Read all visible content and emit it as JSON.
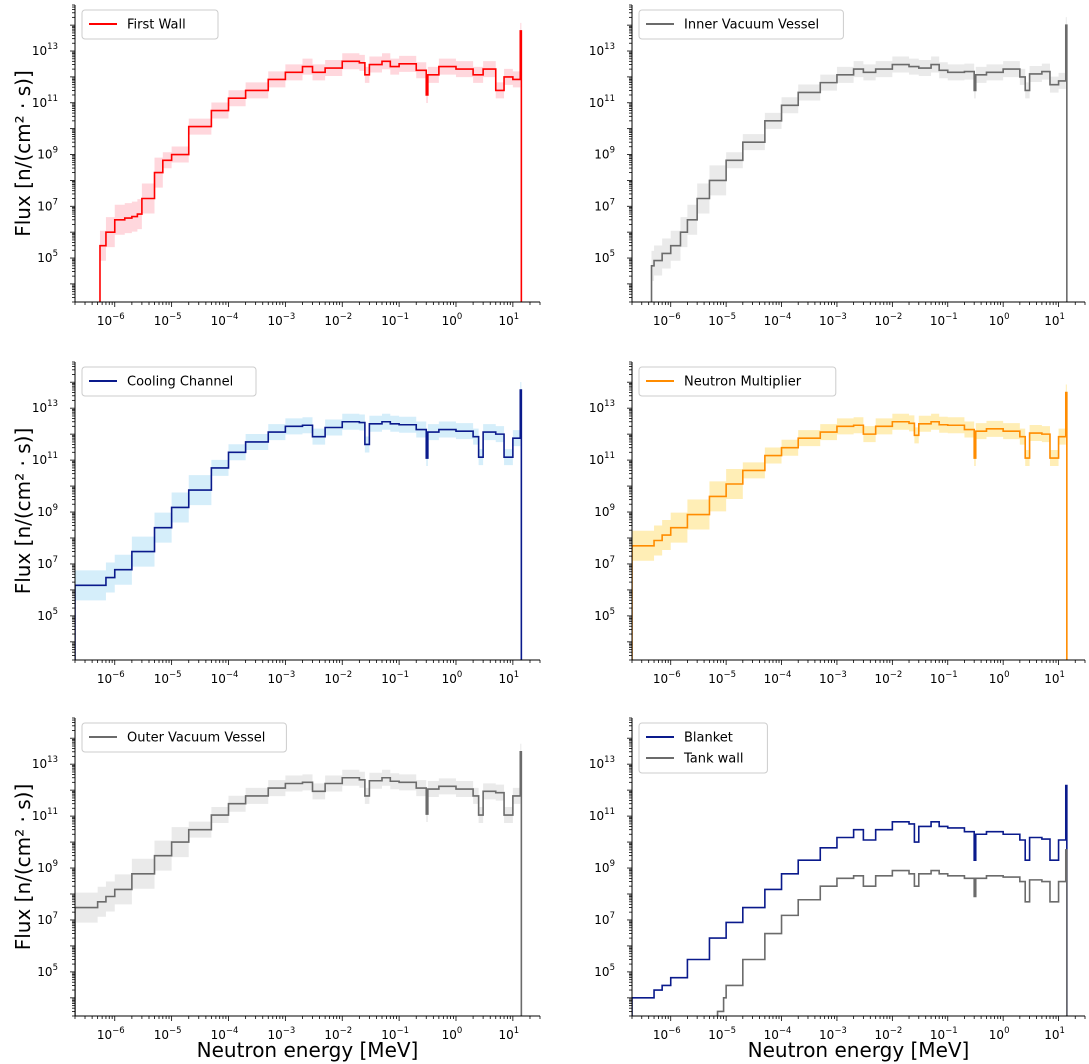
{
  "chart_data": [
    {
      "type": "line",
      "panel": "top-left",
      "ylabel": "Flux [n/(cm² · s)]",
      "xlabel": "",
      "xscale": "log",
      "yscale": "log",
      "xlim": [
        2e-07,
        30
      ],
      "ylim": [
        2000.0,
        600000000000000.0
      ],
      "legend": "top-left",
      "series": [
        {
          "name": "First Wall",
          "color": "#ff0000",
          "band_color": "#ffb6c1",
          "x": [
            5.5e-07,
            7e-07,
            1e-06,
            1.5e-06,
            2e-06,
            2.5e-06,
            3e-06,
            5e-06,
            7e-06,
            1e-05,
            2e-05,
            5e-05,
            0.0001,
            0.0002,
            0.0005,
            0.001,
            0.002,
            0.003,
            0.005,
            0.01,
            0.02,
            0.025,
            0.03,
            0.05,
            0.07,
            0.1,
            0.2,
            0.3,
            0.32,
            0.5,
            1,
            2,
            3,
            5,
            7,
            10,
            13.5,
            14.1
          ],
          "y": [
            300000.0,
            1000000.0,
            3000000.0,
            3500000.0,
            4000000.0,
            5000000.0,
            20000000.0,
            200000000.0,
            600000000.0,
            1000000000.0,
            12000000000.0,
            50000000000.0,
            150000000000.0,
            300000000000.0,
            800000000000.0,
            1500000000000.0,
            2500000000000.0,
            1500000000000.0,
            2200000000000.0,
            4000000000000.0,
            3500000000000.0,
            1200000000000.0,
            3000000000000.0,
            4000000000000.0,
            2500000000000.0,
            3200000000000.0,
            1800000000000.0,
            200000000000.0,
            1200000000000.0,
            2500000000000.0,
            2000000000000.0,
            1200000000000.0,
            2000000000000.0,
            300000000000.0,
            1000000000000.0,
            800000000000.0,
            60000000000000.0,
            0
          ]
        }
      ]
    },
    {
      "type": "line",
      "panel": "top-right",
      "ylabel": "",
      "xlabel": "",
      "xscale": "log",
      "yscale": "log",
      "xlim": [
        2e-07,
        30
      ],
      "ylim": [
        2000.0,
        600000000000000.0
      ],
      "legend": "top-left",
      "series": [
        {
          "name": "Inner Vacuum Vessel",
          "color": "#6b6b6b",
          "band_color": "#d8d8d8",
          "x": [
            4.5e-07,
            5e-07,
            7e-07,
            1e-06,
            1.5e-06,
            2e-06,
            3e-06,
            5e-06,
            1e-05,
            2e-05,
            5e-05,
            0.0001,
            0.0002,
            0.0005,
            0.001,
            0.002,
            0.003,
            0.005,
            0.01,
            0.02,
            0.03,
            0.05,
            0.07,
            0.1,
            0.2,
            0.3,
            0.32,
            0.5,
            1,
            2,
            2.5,
            3,
            5,
            7,
            10,
            13.5,
            14.1
          ],
          "y": [
            50000.0,
            80000.0,
            150000.0,
            300000.0,
            1000000.0,
            3000000.0,
            20000000.0,
            100000000.0,
            600000000.0,
            3000000000.0,
            20000000000.0,
            80000000000.0,
            250000000000.0,
            600000000000.0,
            1200000000000.0,
            2000000000000.0,
            1500000000000.0,
            2000000000000.0,
            3000000000000.0,
            2500000000000.0,
            2200000000000.0,
            3000000000000.0,
            1800000000000.0,
            1500000000000.0,
            1600000000000.0,
            300000000000.0,
            1200000000000.0,
            1500000000000.0,
            2000000000000.0,
            1000000000000.0,
            300000000000.0,
            1300000000000.0,
            1600000000000.0,
            500000000000.0,
            700000000000.0,
            100000000000000.0,
            0
          ]
        }
      ]
    },
    {
      "type": "line",
      "panel": "middle-left",
      "ylabel": "Flux [n/(cm² · s)]",
      "xlabel": "",
      "xscale": "log",
      "yscale": "log",
      "xlim": [
        2e-07,
        30
      ],
      "ylim": [
        2000.0,
        600000000000000.0
      ],
      "legend": "top-left",
      "series": [
        {
          "name": "Cooling Channel",
          "color": "#0a1a8c",
          "band_color": "#b3e0f5",
          "x": [
            2e-07,
            5e-07,
            7e-07,
            1e-06,
            2e-06,
            5e-06,
            1e-05,
            2e-05,
            5e-05,
            0.0001,
            0.0002,
            0.0005,
            0.001,
            0.002,
            0.003,
            0.005,
            0.01,
            0.02,
            0.025,
            0.03,
            0.05,
            0.07,
            0.1,
            0.2,
            0.3,
            0.32,
            0.5,
            1,
            2,
            2.5,
            3,
            5,
            7,
            10,
            13.5,
            14.1
          ],
          "y": [
            1500000.0,
            1500000.0,
            3000000.0,
            6000000.0,
            30000000.0,
            250000000.0,
            1500000000.0,
            7000000000.0,
            50000000000.0,
            200000000000.0,
            500000000000.0,
            1200000000000.0,
            2000000000000.0,
            2200000000000.0,
            800000000000.0,
            1800000000000.0,
            3000000000000.0,
            2800000000000.0,
            400000000000.0,
            2500000000000.0,
            3000000000000.0,
            2500000000000.0,
            2300000000000.0,
            1500000000000.0,
            120000000000.0,
            1200000000000.0,
            1500000000000.0,
            1300000000000.0,
            800000000000.0,
            130000000000.0,
            1200000000000.0,
            1000000000000.0,
            130000000000.0,
            700000000000.0,
            50000000000000.0,
            0
          ]
        }
      ]
    },
    {
      "type": "line",
      "panel": "middle-right",
      "ylabel": "",
      "xlabel": "",
      "xscale": "log",
      "yscale": "log",
      "xlim": [
        2e-07,
        30
      ],
      "ylim": [
        2000.0,
        600000000000000.0
      ],
      "legend": "top-left",
      "series": [
        {
          "name": "Neutron Multiplier",
          "color": "#ff8c00",
          "band_color": "#ffe07a",
          "x": [
            2e-07,
            4e-07,
            5e-07,
            7e-07,
            1e-06,
            2e-06,
            5e-06,
            1e-05,
            2e-05,
            5e-05,
            0.0001,
            0.0002,
            0.0005,
            0.001,
            0.002,
            0.003,
            0.005,
            0.01,
            0.02,
            0.025,
            0.03,
            0.05,
            0.07,
            0.1,
            0.2,
            0.3,
            0.32,
            0.5,
            1,
            2,
            2.5,
            3,
            5,
            7,
            10,
            13.5,
            14.1
          ],
          "y": [
            50000000.0,
            50000000.0,
            80000000.0,
            130000000.0,
            250000000.0,
            800000000.0,
            4000000000.0,
            12000000000.0,
            40000000000.0,
            150000000000.0,
            300000000000.0,
            700000000000.0,
            1200000000000.0,
            2000000000000.0,
            2200000000000.0,
            1000000000000.0,
            2000000000000.0,
            3000000000000.0,
            2600000000000.0,
            900000000000.0,
            2500000000000.0,
            3000000000000.0,
            2300000000000.0,
            2200000000000.0,
            1500000000000.0,
            120000000000.0,
            1300000000000.0,
            1600000000000.0,
            1300000000000.0,
            800000000000.0,
            120000000000.0,
            1100000000000.0,
            1000000000000.0,
            120000000000.0,
            800000000000.0,
            40000000000000.0,
            0
          ]
        }
      ]
    },
    {
      "type": "line",
      "panel": "bottom-left",
      "ylabel": "Flux [n/(cm² · s)]",
      "xlabel": "Neutron energy [MeV]",
      "xscale": "log",
      "yscale": "log",
      "xlim": [
        2e-07,
        30
      ],
      "ylim": [
        2000.0,
        600000000000000.0
      ],
      "legend": "top-left",
      "series": [
        {
          "name": "Outer Vacuum Vessel",
          "color": "#6b6b6b",
          "band_color": "#d8d8d8",
          "x": [
            2e-07,
            4e-07,
            5e-07,
            7e-07,
            1e-06,
            2e-06,
            5e-06,
            1e-05,
            2e-05,
            5e-05,
            0.0001,
            0.0002,
            0.0005,
            0.001,
            0.002,
            0.003,
            0.005,
            0.01,
            0.02,
            0.025,
            0.03,
            0.05,
            0.07,
            0.1,
            0.2,
            0.3,
            0.32,
            0.5,
            1,
            2,
            2.5,
            3,
            5,
            7,
            10,
            13.5,
            14.1
          ],
          "y": [
            30000000.0,
            30000000.0,
            50000000.0,
            80000000.0,
            150000000.0,
            600000000.0,
            3000000000.0,
            10000000000.0,
            30000000000.0,
            110000000000.0,
            300000000000.0,
            600000000000.0,
            1200000000000.0,
            1800000000000.0,
            2000000000000.0,
            900000000000.0,
            1800000000000.0,
            3000000000000.0,
            2500000000000.0,
            600000000000.0,
            2300000000000.0,
            3000000000000.0,
            2200000000000.0,
            2000000000000.0,
            1200000000000.0,
            120000000000.0,
            1100000000000.0,
            1400000000000.0,
            1100000000000.0,
            600000000000.0,
            110000000000.0,
            900000000000.0,
            800000000000.0,
            110000000000.0,
            600000000000.0,
            30000000000000.0,
            0
          ]
        }
      ]
    },
    {
      "type": "line",
      "panel": "bottom-right",
      "ylabel": "",
      "xlabel": "Neutron energy [MeV]",
      "xscale": "log",
      "yscale": "log",
      "xlim": [
        2e-07,
        30
      ],
      "ylim": [
        2000.0,
        600000000000000.0
      ],
      "legend": "top-left",
      "series": [
        {
          "name": "Blanket",
          "color": "#0a1a8c",
          "band_color": "",
          "x": [
            2e-07,
            4e-07,
            5e-07,
            7e-07,
            1e-06,
            2e-06,
            5e-06,
            1e-05,
            2e-05,
            5e-05,
            0.0001,
            0.0002,
            0.0005,
            0.001,
            0.002,
            0.003,
            0.005,
            0.01,
            0.02,
            0.025,
            0.03,
            0.05,
            0.07,
            0.1,
            0.2,
            0.3,
            0.32,
            0.5,
            1,
            2,
            2.5,
            3,
            5,
            7,
            10,
            13.5,
            14.1
          ],
          "y": [
            10000.0,
            10000.0,
            20000.0,
            30000.0,
            60000.0,
            300000.0,
            2000000.0,
            8000000.0,
            30000000.0,
            150000000.0,
            600000000.0,
            2000000000.0,
            6000000000.0,
            15000000000.0,
            30000000000.0,
            12000000000.0,
            30000000000.0,
            60000000000.0,
            50000000000.0,
            10000000000.0,
            40000000000.0,
            60000000000.0,
            40000000000.0,
            35000000000.0,
            25000000000.0,
            2000000000.0,
            20000000000.0,
            25000000000.0,
            20000000000.0,
            12000000000.0,
            2000000000.0,
            15000000000.0,
            13000000000.0,
            2000000000.0,
            12000000000.0,
            1500000000000.0,
            0
          ]
        },
        {
          "name": "Tank wall",
          "color": "#6b6b6b",
          "band_color": "",
          "x": [
            7e-06,
            9e-06,
            1e-05,
            2e-05,
            5e-05,
            0.0001,
            0.0002,
            0.0005,
            0.001,
            0.002,
            0.003,
            0.005,
            0.01,
            0.02,
            0.025,
            0.03,
            0.05,
            0.07,
            0.1,
            0.2,
            0.3,
            0.32,
            0.5,
            1,
            2,
            2.5,
            3,
            5,
            7,
            10,
            13.5,
            14.1
          ],
          "y": [
            3000.0,
            10000.0,
            30000.0,
            300000.0,
            3000000.0,
            15000000.0,
            60000000.0,
            200000000.0,
            400000000.0,
            500000000.0,
            200000000.0,
            500000000.0,
            800000000.0,
            600000000.0,
            200000000.0,
            600000000.0,
            800000000.0,
            600000000.0,
            500000000.0,
            400000000.0,
            80000000.0,
            400000000.0,
            500000000.0,
            450000000.0,
            300000000.0,
            50000000.0,
            350000000.0,
            300000000.0,
            50000000.0,
            300000000.0,
            5000000000.0,
            0
          ]
        }
      ]
    }
  ]
}
